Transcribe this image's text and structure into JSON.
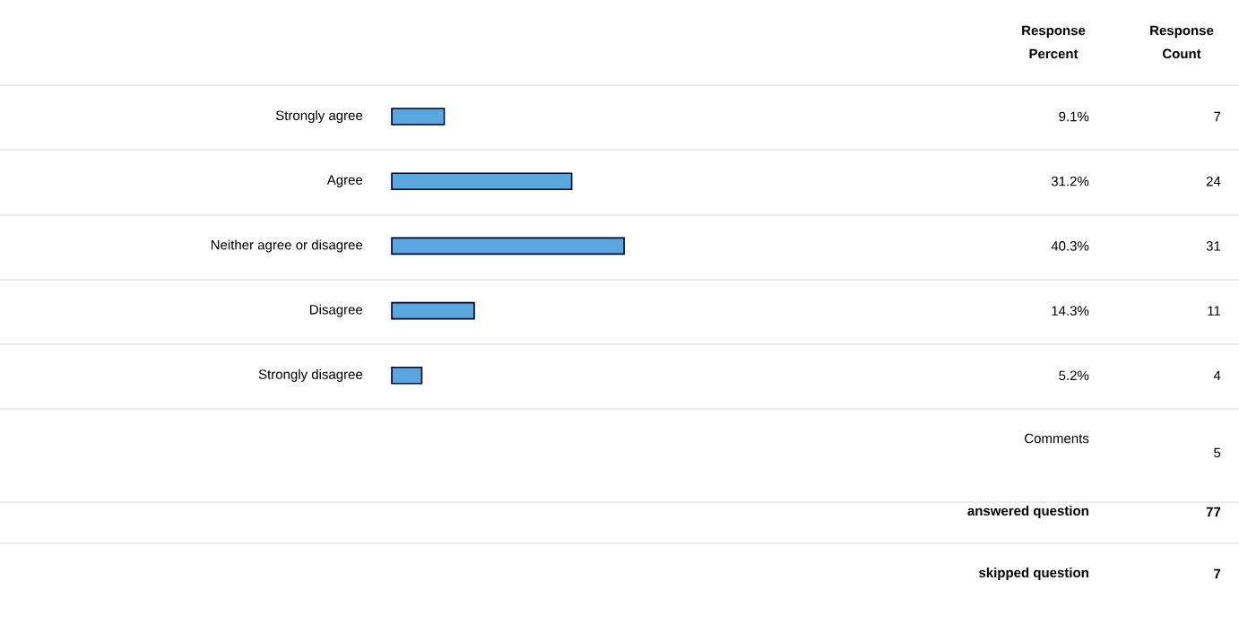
{
  "chart_data": {
    "type": "bar",
    "orientation": "horizontal",
    "categories": [
      "Strongly agree",
      "Agree",
      "Neither agree or disagree",
      "Disagree",
      "Strongly disagree"
    ],
    "values": [
      9.1,
      31.2,
      40.3,
      14.3,
      5.2
    ],
    "value_labels": [
      "9.1%",
      "31.2%",
      "40.3%",
      "14.3%",
      "5.2%"
    ],
    "color": "#5aa7e0",
    "tick_labels": "y",
    "annotations": [
      "7",
      "24",
      "31",
      "11",
      "4",
      "Response Percent",
      "Response Count",
      "Comments",
      "5",
      "answered question",
      "77",
      "skipped question",
      "7"
    ]
  }
}
